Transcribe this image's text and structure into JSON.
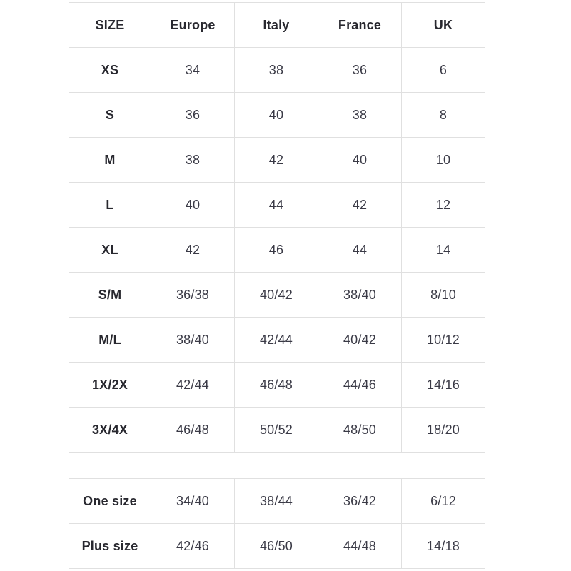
{
  "colors": {
    "background": "#ffffff",
    "border": "#e0e0e0",
    "text": "#3a3a46",
    "heading_text": "#28282f"
  },
  "size_chart": {
    "headers": [
      "SIZE",
      "Europe",
      "Italy",
      "France",
      "UK"
    ],
    "rows": [
      [
        "XS",
        "34",
        "38",
        "36",
        "6"
      ],
      [
        "S",
        "36",
        "40",
        "38",
        "8"
      ],
      [
        "M",
        "38",
        "42",
        "40",
        "10"
      ],
      [
        "L",
        "40",
        "44",
        "42",
        "12"
      ],
      [
        "XL",
        "42",
        "46",
        "44",
        "14"
      ],
      [
        "S/M",
        "36/38",
        "40/42",
        "38/40",
        "8/10"
      ],
      [
        "M/L",
        "38/40",
        "42/44",
        "40/42",
        "10/12"
      ],
      [
        "1X/2X",
        "42/44",
        "46/48",
        "44/46",
        "14/16"
      ],
      [
        "3X/4X",
        "46/48",
        "50/52",
        "48/50",
        "18/20"
      ]
    ]
  },
  "special_sizes": {
    "rows": [
      [
        "One size",
        "34/40",
        "38/44",
        "36/42",
        "6/12"
      ],
      [
        "Plus size",
        "42/46",
        "46/50",
        "44/48",
        "14/18"
      ]
    ]
  }
}
